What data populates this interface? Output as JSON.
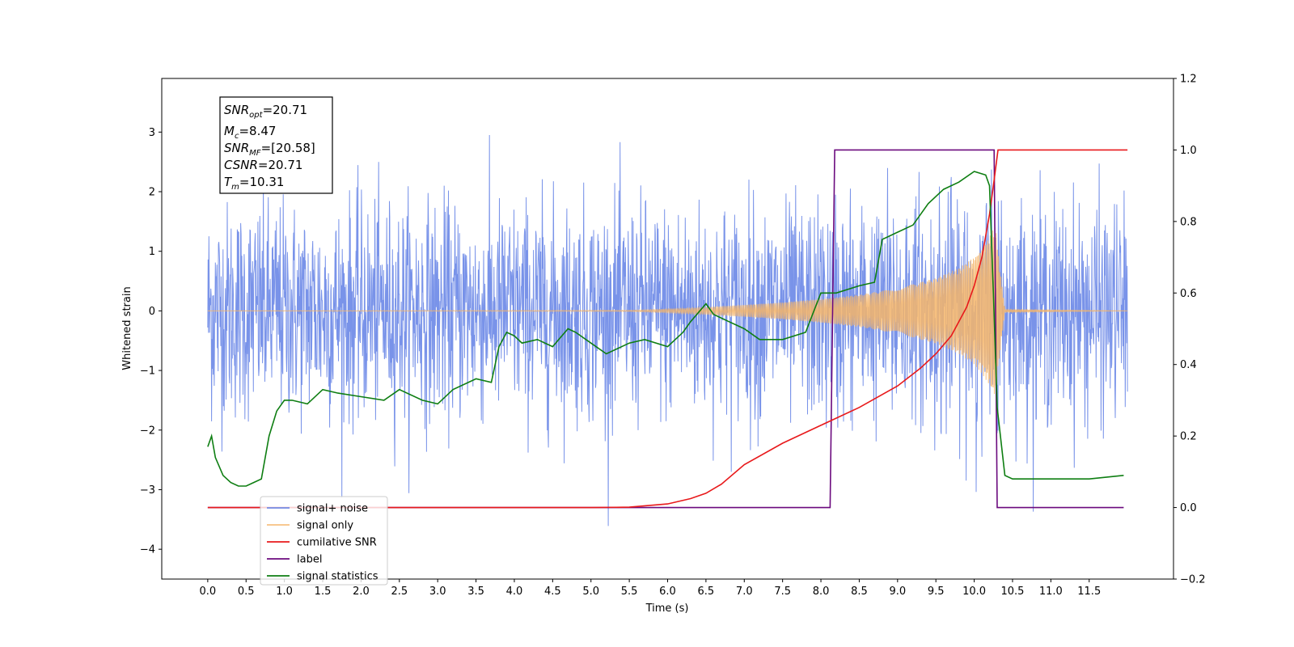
{
  "chart_data": {
    "type": "line",
    "xlabel": "Time (s)",
    "ylabel": "Whitened strain",
    "xlim": [
      -0.6,
      12.6
    ],
    "ylim": [
      -4.5,
      3.9
    ],
    "y2lim": [
      -0.2,
      1.2
    ],
    "x_ticks": [
      "0.0",
      "0.5",
      "1.0",
      "1.5",
      "2.0",
      "2.5",
      "3.0",
      "3.5",
      "4.0",
      "4.5",
      "5.0",
      "5.5",
      "6.0",
      "6.5",
      "7.0",
      "7.5",
      "8.0",
      "8.5",
      "9.0",
      "9.5",
      "10.0",
      "10.5",
      "11.0",
      "11.5"
    ],
    "y_ticks": [
      "3",
      "2",
      "1",
      "0",
      "−1",
      "−2",
      "−3",
      "−4"
    ],
    "y2_ticks": [
      "1.2",
      "1.0",
      "0.8",
      "0.6",
      "0.4",
      "0.2",
      "0.0",
      "−0.2"
    ],
    "grid": false,
    "legend_position": "lower-left",
    "annotations": {
      "snr_opt": "20.71",
      "mc": "8.47",
      "snr_mf": "[20.58]",
      "csnr": "20.71",
      "tm": "10.31"
    },
    "series": [
      {
        "name": "signal+ noise",
        "axis": "left",
        "color": "#5b7be4",
        "description": "white noise with std ~1, peaks to about +/-3.5 over 0 to 12 s",
        "noise_std": 0.9,
        "t_range": [
          0.0,
          12.0
        ]
      },
      {
        "name": "signal only",
        "axis": "left",
        "color": "#f5b56a",
        "description": "chirp waveform with envelope growing until merger at 10.31 s",
        "envelope": {
          "t": [
            0.0,
            5.5,
            6.0,
            6.5,
            7.0,
            7.5,
            8.0,
            8.5,
            9.0,
            9.5,
            9.8,
            10.0,
            10.1,
            10.2,
            10.28,
            10.31,
            10.4,
            12.0
          ],
          "amp": [
            0.0,
            0.01,
            0.03,
            0.06,
            0.1,
            0.14,
            0.2,
            0.27,
            0.38,
            0.55,
            0.72,
            0.9,
            1.05,
            1.25,
            1.45,
            1.0,
            0.02,
            0.0
          ]
        }
      },
      {
        "name": "cumilative SNR",
        "axis": "right",
        "color": "#e8191b",
        "x": [
          0.0,
          5.0,
          5.5,
          6.0,
          6.3,
          6.5,
          6.7,
          7.0,
          7.5,
          8.0,
          8.5,
          9.0,
          9.3,
          9.5,
          9.7,
          9.8,
          9.9,
          10.0,
          10.1,
          10.2,
          10.25,
          10.31,
          12.0
        ],
        "values": [
          0.0,
          0.0,
          0.001,
          0.01,
          0.025,
          0.04,
          0.065,
          0.12,
          0.18,
          0.23,
          0.28,
          0.34,
          0.39,
          0.43,
          0.48,
          0.52,
          0.56,
          0.62,
          0.7,
          0.82,
          0.9,
          1.0,
          1.0
        ]
      },
      {
        "name": "label",
        "axis": "right",
        "color": "#6b0a7e",
        "x": [
          0.0,
          8.12,
          8.18,
          10.26,
          10.3,
          11.95
        ],
        "values": [
          0.0,
          0.0,
          1.0,
          1.0,
          0.0,
          0.0
        ]
      },
      {
        "name": "signal statistics",
        "axis": "right",
        "color": "#0e7e12",
        "x": [
          0.0,
          0.05,
          0.1,
          0.2,
          0.3,
          0.4,
          0.5,
          0.6,
          0.7,
          0.8,
          0.9,
          1.0,
          1.1,
          1.3,
          1.5,
          1.7,
          2.0,
          2.3,
          2.5,
          2.8,
          3.0,
          3.2,
          3.5,
          3.7,
          3.8,
          3.9,
          4.0,
          4.1,
          4.3,
          4.5,
          4.7,
          4.8,
          5.0,
          5.2,
          5.5,
          5.7,
          6.0,
          6.2,
          6.3,
          6.5,
          6.6,
          6.8,
          7.0,
          7.2,
          7.5,
          7.8,
          8.0,
          8.2,
          8.5,
          8.7,
          8.8,
          9.0,
          9.2,
          9.4,
          9.6,
          9.8,
          10.0,
          10.15,
          10.2,
          10.25,
          10.3,
          10.4,
          10.5,
          10.6,
          11.0,
          11.5,
          11.95
        ],
        "values": [
          0.17,
          0.2,
          0.14,
          0.09,
          0.07,
          0.06,
          0.06,
          0.07,
          0.08,
          0.2,
          0.27,
          0.3,
          0.3,
          0.29,
          0.33,
          0.32,
          0.31,
          0.3,
          0.33,
          0.3,
          0.29,
          0.33,
          0.36,
          0.35,
          0.45,
          0.49,
          0.48,
          0.46,
          0.47,
          0.45,
          0.5,
          0.49,
          0.46,
          0.43,
          0.46,
          0.47,
          0.45,
          0.49,
          0.52,
          0.57,
          0.54,
          0.52,
          0.5,
          0.47,
          0.47,
          0.49,
          0.6,
          0.6,
          0.62,
          0.63,
          0.75,
          0.77,
          0.79,
          0.85,
          0.89,
          0.91,
          0.94,
          0.93,
          0.9,
          0.6,
          0.28,
          0.09,
          0.08,
          0.08,
          0.08,
          0.08,
          0.09
        ]
      }
    ]
  }
}
